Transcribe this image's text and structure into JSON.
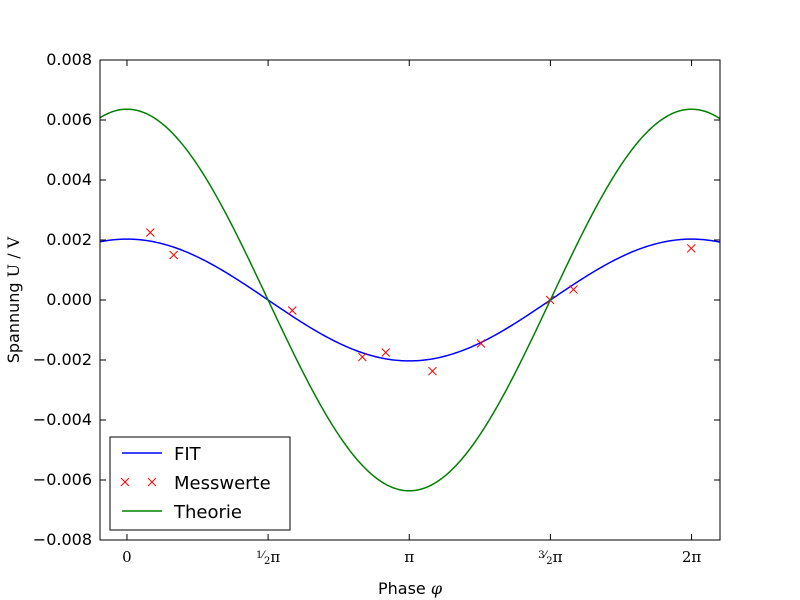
{
  "chart_data": {
    "type": "line",
    "xlabel": "Phase",
    "xlabel_symbol": "φ",
    "ylabel": "Spannung",
    "ylabel_unit": "U / V",
    "xlim": [
      -0.3,
      6.6
    ],
    "ylim": [
      -0.008,
      0.008
    ],
    "yticks": [
      -0.008,
      -0.006,
      -0.004,
      -0.002,
      0.0,
      0.002,
      0.004,
      0.006,
      0.008
    ],
    "ytick_labels": [
      "−0.008",
      "−0.006",
      "−0.004",
      "−0.002",
      "0.000",
      "0.002",
      "0.004",
      "0.006",
      "0.008"
    ],
    "xticks": [
      0,
      1.5708,
      3.1416,
      4.7124,
      6.2832
    ],
    "xtick_labels": [
      "0",
      "½π",
      "π",
      "³⁄₂π",
      "2π"
    ],
    "grid": false,
    "legend_position": "lower-left",
    "series": [
      {
        "name": "FIT",
        "kind": "line",
        "color": "#0000ff",
        "function": "cosine",
        "amplitude": 0.00203,
        "phase_shift": 0.0,
        "x": [
          -0.3,
          0,
          0.5,
          1.0,
          1.5708,
          2.0,
          2.5,
          3.1416,
          3.5,
          4.0,
          4.7124,
          5.0,
          5.5,
          6.2832,
          6.6
        ],
        "values": [
          0.00194,
          0.00203,
          0.00178,
          0.0011,
          0.0,
          -0.00084,
          -0.00163,
          -0.00203,
          -0.0019,
          -0.00133,
          0.0,
          0.00058,
          0.00144,
          0.00203,
          0.00193
        ]
      },
      {
        "name": "Messwerte",
        "kind": "scatter",
        "color": "#ff0000",
        "marker": "x",
        "x": [
          0.26,
          0.52,
          1.84,
          2.62,
          2.88,
          3.4,
          3.94,
          4.71,
          4.97,
          6.28
        ],
        "values": [
          0.00225,
          0.0015,
          -0.00035,
          -0.0019,
          -0.00175,
          -0.00237,
          -0.00145,
          0.0,
          0.00035,
          0.00172
        ]
      },
      {
        "name": "Theorie",
        "kind": "line",
        "color": "#008000",
        "function": "cosine",
        "amplitude": 0.00636,
        "phase_shift": 0.0,
        "x": [
          -0.3,
          0,
          0.5,
          1.0,
          1.5708,
          2.0,
          2.5,
          3.1416,
          3.5,
          4.0,
          4.7124,
          5.0,
          5.5,
          6.2832,
          6.6
        ],
        "values": [
          0.00608,
          0.00636,
          0.00558,
          0.00344,
          0.0,
          -0.00265,
          -0.0051,
          -0.00636,
          -0.00596,
          -0.00416,
          0.0,
          0.0018,
          0.0045,
          0.00636,
          0.00605
        ]
      }
    ]
  }
}
